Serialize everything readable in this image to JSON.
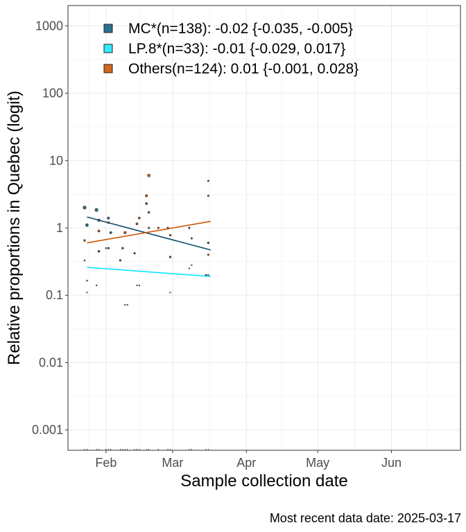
{
  "chart_data": {
    "type": "scatter",
    "title": "",
    "xlabel": "Sample collection date",
    "ylabel": "Relative proportions in Quebec (logit)",
    "caption": "Most recent data date: 2025-03-17",
    "y_scale": "log10",
    "ylim": [
      0.0005,
      2000
    ],
    "xlim": [
      "2025-01-16",
      "2025-06-30"
    ],
    "grid": true,
    "legend_position": "top-left inside",
    "x_ticks": [
      {
        "date": "2025-02-01",
        "label": "Feb"
      },
      {
        "date": "2025-03-01",
        "label": "Mar"
      },
      {
        "date": "2025-04-01",
        "label": "Apr"
      },
      {
        "date": "2025-05-01",
        "label": "May"
      },
      {
        "date": "2025-06-01",
        "label": "Jun"
      }
    ],
    "y_ticks": [
      {
        "value": 0.001,
        "label": "0.001"
      },
      {
        "value": 0.01,
        "label": "0.01"
      },
      {
        "value": 0.1,
        "label": "0.1"
      },
      {
        "value": 1,
        "label": "1"
      },
      {
        "value": 10,
        "label": "10"
      },
      {
        "value": 100,
        "label": "100"
      },
      {
        "value": 1000,
        "label": "1000"
      }
    ],
    "series": [
      {
        "name": "MC*(n=138): -0.02 {-0.035, -0.005}",
        "color": "#2f6f8f",
        "line_color": "#0a4f6e",
        "trend": [
          {
            "x": "2025-01-24",
            "y": 1.45
          },
          {
            "x": "2025-03-17",
            "y": 0.47
          }
        ],
        "points": [
          {
            "x": "2025-01-23",
            "y": 2.0,
            "s": 2.2
          },
          {
            "x": "2025-01-24",
            "y": 1.1,
            "s": 2.0
          },
          {
            "x": "2025-01-28",
            "y": 1.85,
            "s": 2.2
          },
          {
            "x": "2025-01-29",
            "y": 1.3,
            "s": 1.8
          },
          {
            "x": "2025-01-29",
            "y": 0.45,
            "s": 1.4
          },
          {
            "x": "2025-02-02",
            "y": 1.4,
            "s": 1.6
          },
          {
            "x": "2025-02-03",
            "y": 0.85,
            "s": 1.5
          },
          {
            "x": "2025-02-08",
            "y": 0.5,
            "s": 1.3
          },
          {
            "x": "2025-02-09",
            "y": 0.85,
            "s": 1.5
          },
          {
            "x": "2025-02-13",
            "y": 0.42,
            "s": 1.2
          },
          {
            "x": "2025-02-18",
            "y": 2.3,
            "s": 1.4
          },
          {
            "x": "2025-02-19",
            "y": 1.7,
            "s": 1.3
          },
          {
            "x": "2025-02-28",
            "y": 0.37,
            "s": 1.3
          },
          {
            "x": "2025-03-08",
            "y": 1.0,
            "s": 1.2
          },
          {
            "x": "2025-03-09",
            "y": 0.7,
            "s": 1.1
          },
          {
            "x": "2025-03-16",
            "y": 5.0,
            "s": 1.1
          },
          {
            "x": "2025-03-16",
            "y": 0.6,
            "s": 1.2
          },
          {
            "x": "2025-03-15",
            "y": 0.2,
            "s": 1.0
          }
        ]
      },
      {
        "name": "LP.8*(n=33): -0.01 {-0.029, 0.017}",
        "color": "#33ebff",
        "line_color": "#00e5ff",
        "trend": [
          {
            "x": "2025-01-24",
            "y": 0.26
          },
          {
            "x": "2025-03-17",
            "y": 0.19
          }
        ],
        "points": [
          {
            "x": "2025-01-23",
            "y": 0.33,
            "s": 0.9
          },
          {
            "x": "2025-01-24",
            "y": 0.165,
            "s": 0.9
          },
          {
            "x": "2025-01-24",
            "y": 0.11,
            "s": 0.8
          },
          {
            "x": "2025-01-28",
            "y": 0.14,
            "s": 0.8
          },
          {
            "x": "2025-02-01",
            "y": 0.5,
            "s": 0.9
          },
          {
            "x": "2025-02-09",
            "y": 0.072,
            "s": 0.8
          },
          {
            "x": "2025-02-10",
            "y": 0.072,
            "s": 0.8
          },
          {
            "x": "2025-02-14",
            "y": 0.14,
            "s": 0.8
          },
          {
            "x": "2025-02-15",
            "y": 0.14,
            "s": 0.8
          },
          {
            "x": "2025-02-28",
            "y": 0.11,
            "s": 0.8
          },
          {
            "x": "2025-03-08",
            "y": 0.25,
            "s": 0.8
          },
          {
            "x": "2025-03-09",
            "y": 0.28,
            "s": 0.8
          },
          {
            "x": "2025-03-16",
            "y": 0.2,
            "s": 0.9
          }
        ]
      },
      {
        "name": "Others(n=124): 0.01 {-0.001, 0.028}",
        "color": "#d2691e",
        "line_color": "#cc5500",
        "trend": [
          {
            "x": "2025-01-24",
            "y": 0.6
          },
          {
            "x": "2025-03-17",
            "y": 1.25
          }
        ],
        "points": [
          {
            "x": "2025-01-23",
            "y": 0.65,
            "s": 1.3
          },
          {
            "x": "2025-01-29",
            "y": 0.9,
            "s": 1.5
          },
          {
            "x": "2025-02-02",
            "y": 1.2,
            "s": 1.4
          },
          {
            "x": "2025-02-02",
            "y": 0.5,
            "s": 1.3
          },
          {
            "x": "2025-02-07",
            "y": 0.33,
            "s": 1.2
          },
          {
            "x": "2025-02-09",
            "y": 0.85,
            "s": 1.6
          },
          {
            "x": "2025-02-14",
            "y": 1.15,
            "s": 1.5
          },
          {
            "x": "2025-02-15",
            "y": 1.4,
            "s": 1.5
          },
          {
            "x": "2025-02-19",
            "y": 1.0,
            "s": 1.2
          },
          {
            "x": "2025-02-18",
            "y": 3.0,
            "s": 1.6
          },
          {
            "x": "2025-02-19",
            "y": 6.0,
            "s": 2.0
          },
          {
            "x": "2025-02-23",
            "y": 1.0,
            "s": 1.2
          },
          {
            "x": "2025-02-27",
            "y": 1.0,
            "s": 1.1
          },
          {
            "x": "2025-02-28",
            "y": 0.78,
            "s": 1.3
          },
          {
            "x": "2025-03-16",
            "y": 3.0,
            "s": 1.1
          },
          {
            "x": "2025-03-16",
            "y": 0.4,
            "s": 1.1
          }
        ]
      }
    ]
  }
}
